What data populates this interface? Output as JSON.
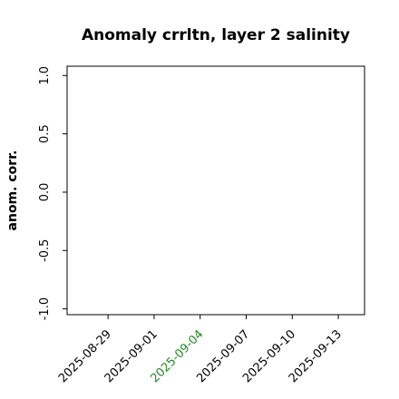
{
  "chart_data": {
    "type": "line",
    "title": "Anomaly crrltn, layer 2 salinity",
    "y_label": "anom. corr.",
    "series": [],
    "xlim": [
      "2025-08-26T08:00",
      "2025-09-14T17:00"
    ],
    "xticks": [
      "2025-08-29",
      "2025-09-01",
      "2025-09-04",
      "2025-09-07",
      "2025-09-10",
      "2025-09-13"
    ],
    "xtick_label_colors": [
      "#000000",
      "#000000",
      "#228b22",
      "#000000",
      "#000000",
      "#000000"
    ],
    "ylim": [
      -1.05,
      1.08
    ],
    "yticks": [
      {
        "value": -1,
        "label": "-1.0"
      },
      {
        "value": -0.5,
        "label": "-0.5"
      },
      {
        "value": 0,
        "label": "0.0"
      },
      {
        "value": 0.5,
        "label": "0.5"
      },
      {
        "value": 1,
        "label": "1.0"
      }
    ]
  }
}
